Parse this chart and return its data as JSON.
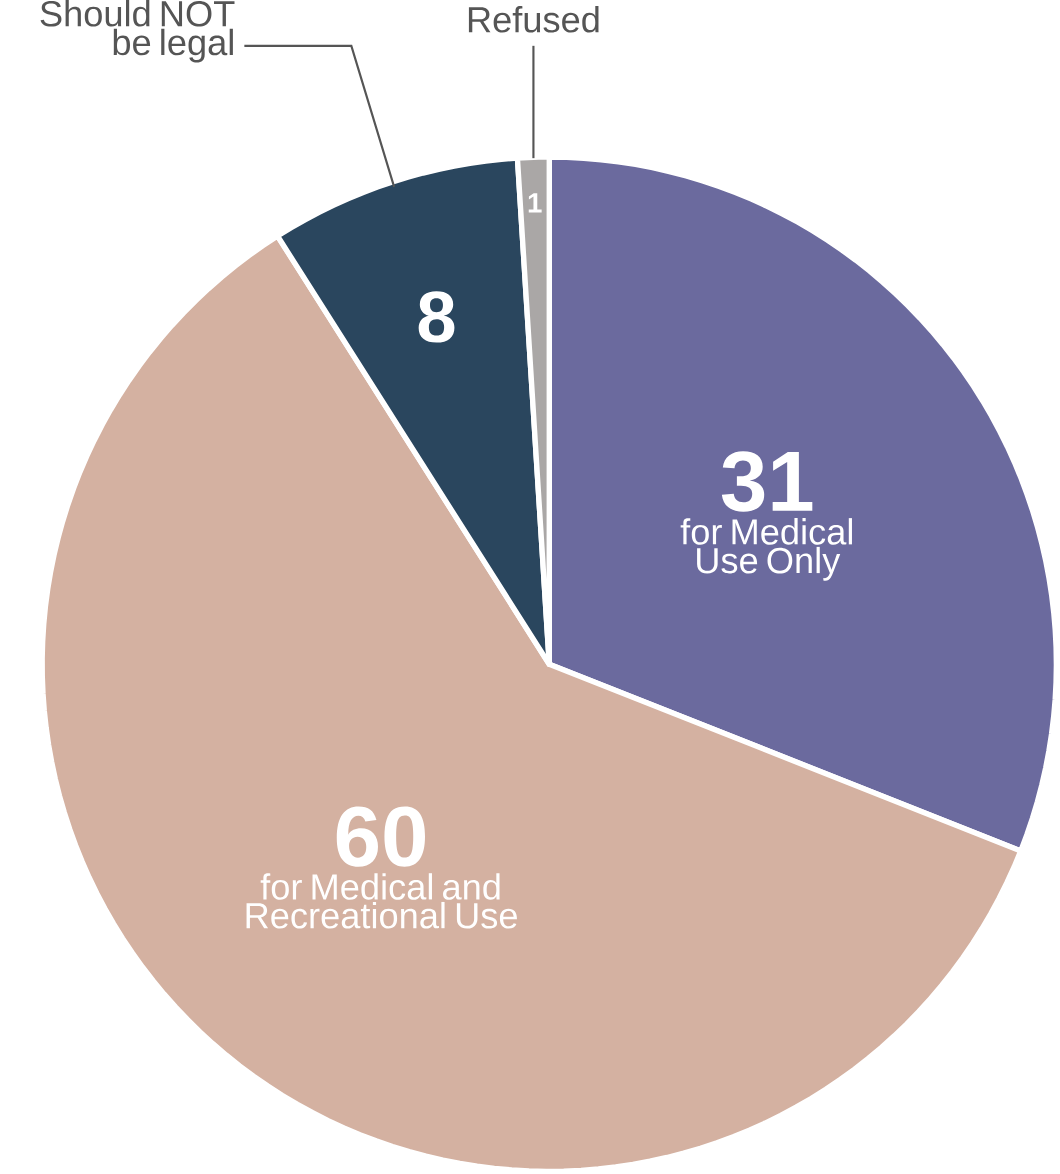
{
  "chart_data": {
    "type": "pie",
    "categories": [
      "for Medical Use Only",
      "for Medical and Recreational Use",
      "Should NOT be legal",
      "Refused"
    ],
    "values": [
      31,
      60,
      8,
      1
    ],
    "colors": [
      "#6b6a9e",
      "#d4b1a1",
      "#2a465e",
      "#aaa7a6"
    ],
    "data_labels": true
  }
}
